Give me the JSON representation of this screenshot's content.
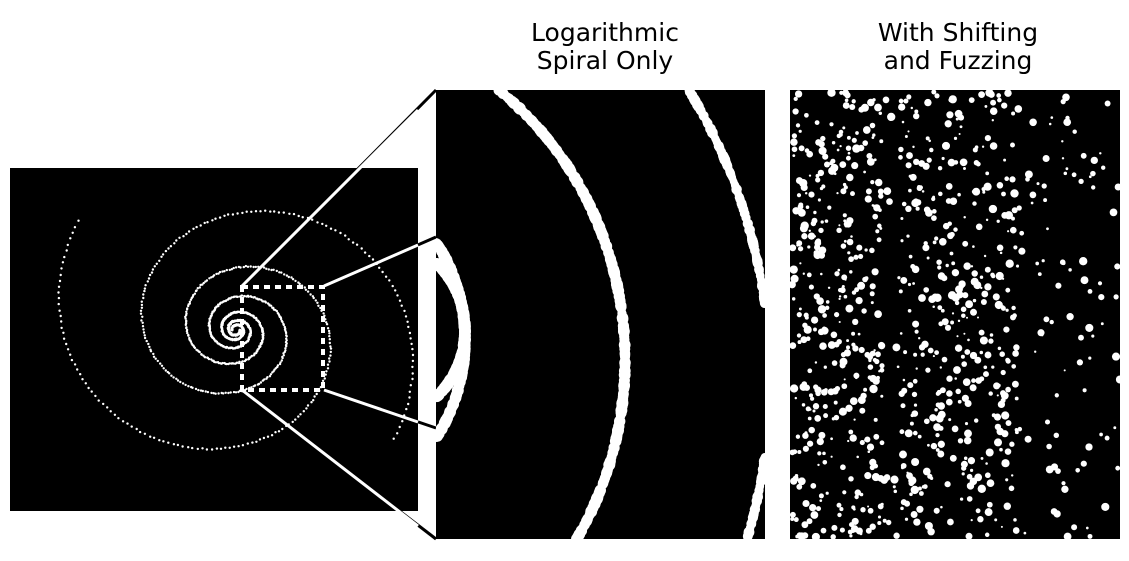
{
  "captions": {
    "middle": [
      "Logarithmic",
      "Spiral Only"
    ],
    "right": [
      "With Shifting",
      "and Fuzzing"
    ]
  },
  "colors": {
    "background": "#ffffff",
    "panel": "#000000",
    "dots": "#ffffff",
    "connector": "#000000",
    "selection-box": "#ffffff"
  }
}
